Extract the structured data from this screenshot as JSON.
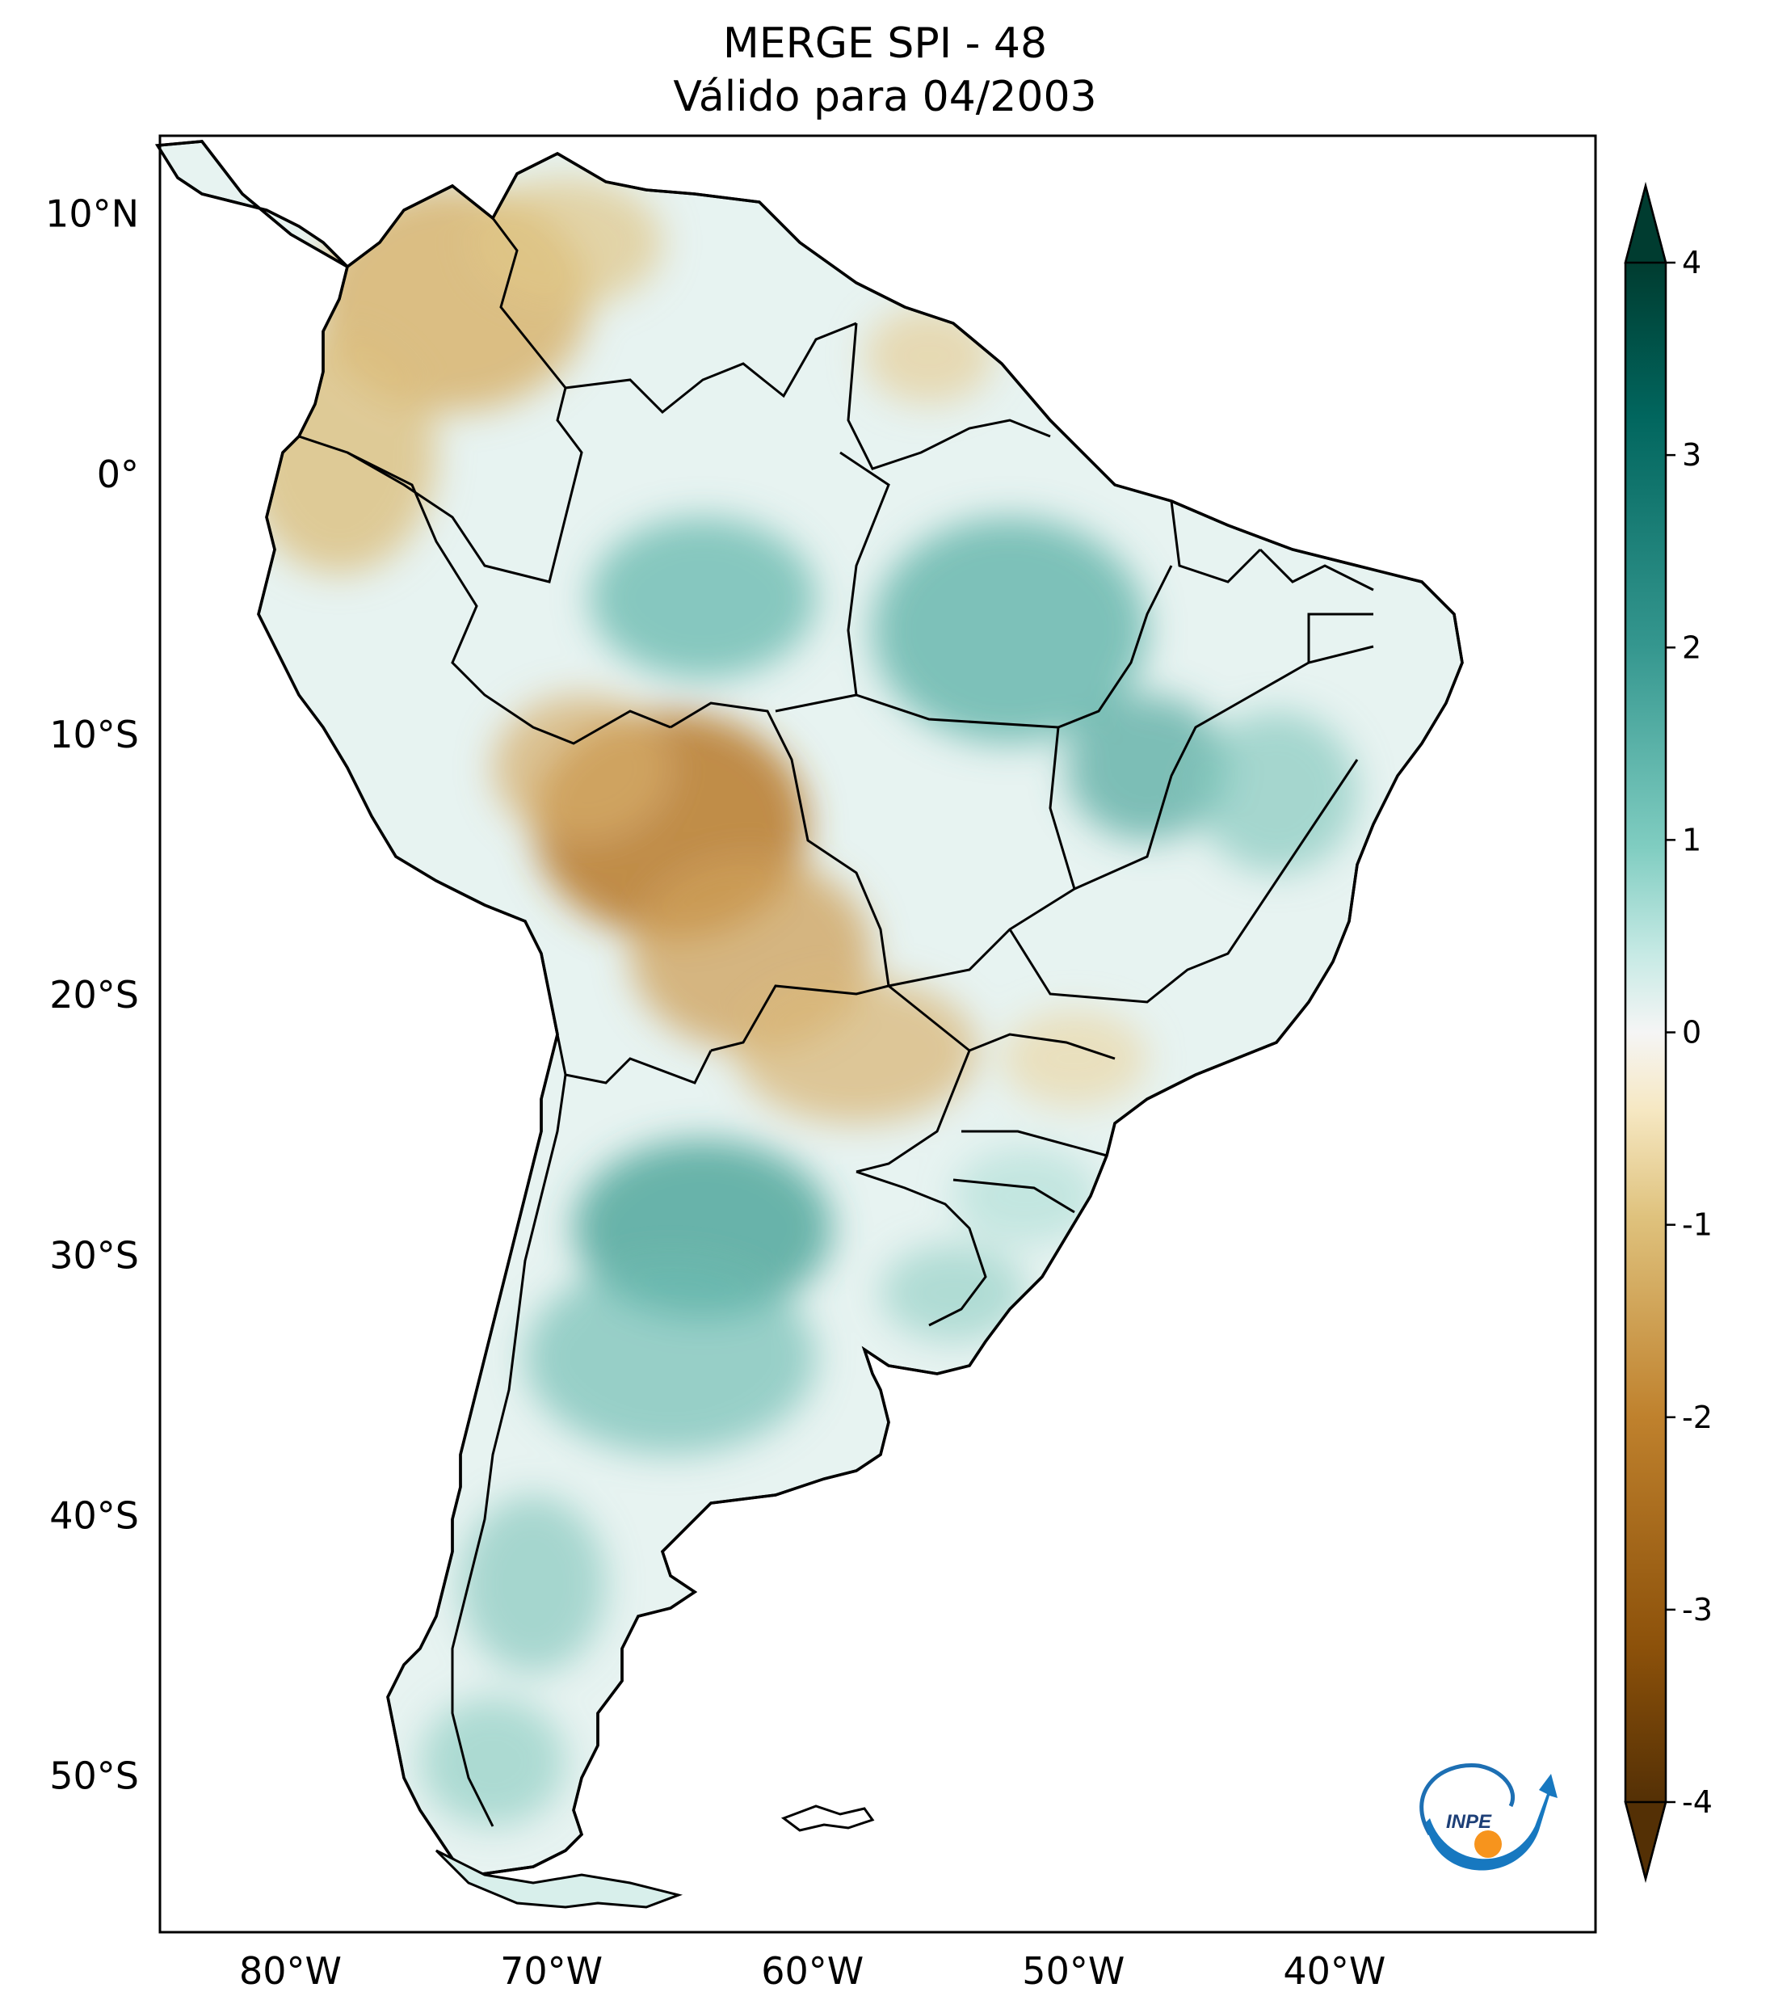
{
  "title": {
    "line1": "MERGE   SPI - 48",
    "line2": "Válido para 04/2003"
  },
  "map": {
    "lon_range": [
      -85,
      -30
    ],
    "lat_range": [
      -56,
      13
    ],
    "lat_labels": [
      "10°N",
      "0°",
      "10°S",
      "20°S",
      "30°S",
      "40°S",
      "50°S"
    ],
    "lat_values": [
      10,
      0,
      -10,
      -20,
      -30,
      -40,
      -50
    ],
    "lon_labels": [
      "80°W",
      "70°W",
      "60°W",
      "50°W",
      "40°W"
    ],
    "lon_values": [
      -80,
      -70,
      -60,
      -50,
      -40
    ]
  },
  "colorbar": {
    "ticks": [
      "4",
      "3",
      "2",
      "1",
      "0",
      "-1",
      "-2",
      "-3",
      "-4"
    ],
    "tick_values": [
      4,
      3,
      2,
      1,
      0,
      -1,
      -2,
      -3,
      -4
    ],
    "range": [
      -4,
      4
    ],
    "colors": {
      "wet_max": "#003c30",
      "wet_high": "#01665e",
      "wet_mid": "#35978f",
      "wet_low": "#80cdc1",
      "wet_light": "#c7eae5",
      "neutral": "#f5f5f5",
      "dry_light": "#f6e8c3",
      "dry_low": "#dfc27d",
      "dry_mid": "#bf812d",
      "dry_high": "#8c510a",
      "dry_max": "#543005"
    }
  },
  "logo": {
    "text": "INPE"
  }
}
